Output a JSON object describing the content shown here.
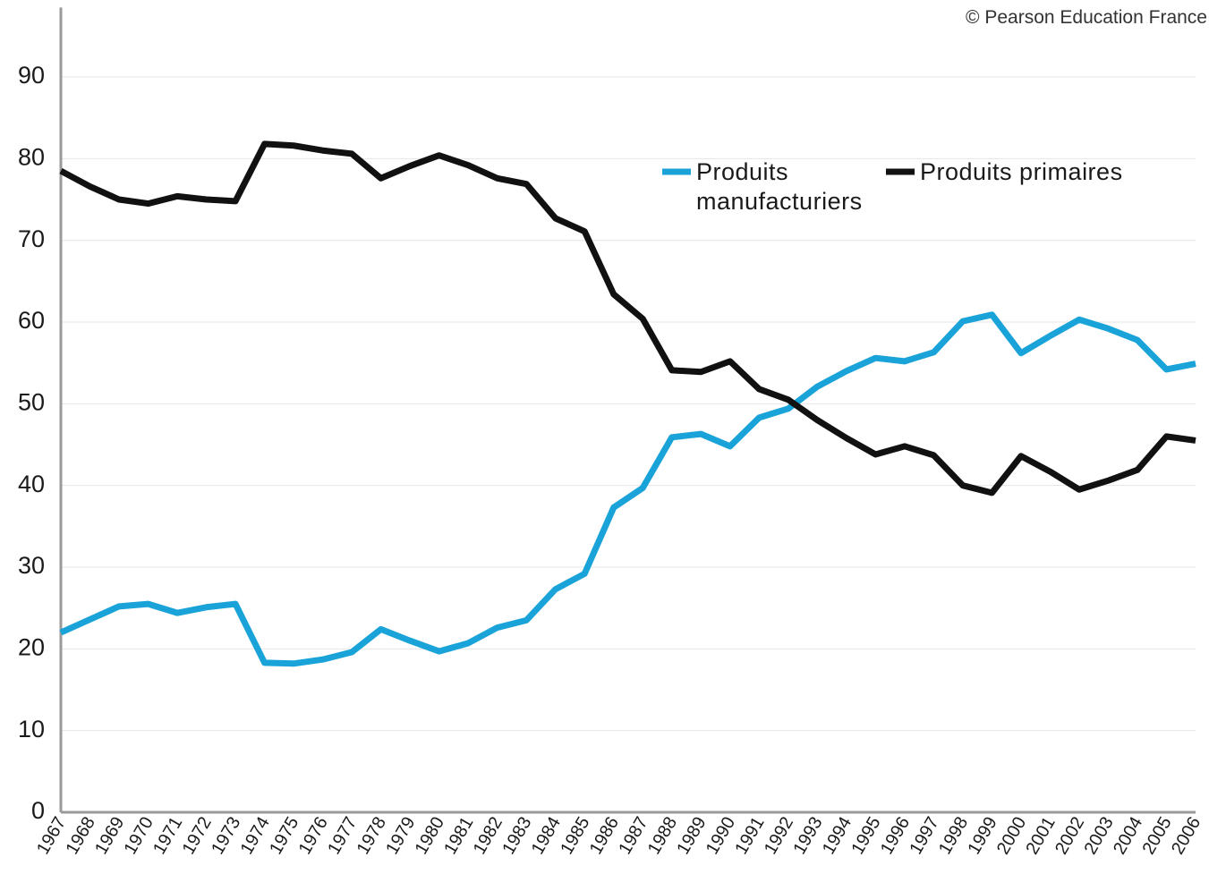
{
  "chart_data": {
    "type": "line",
    "annotation": "© Pearson Education France",
    "categories": [
      "1967",
      "1968",
      "1969",
      "1970",
      "1971",
      "1972",
      "1973",
      "1974",
      "1975",
      "1976",
      "1977",
      "1978",
      "1979",
      "1980",
      "1981",
      "1982",
      "1983",
      "1984",
      "1985",
      "1986",
      "1987",
      "1988",
      "1989",
      "1990",
      "1991",
      "1992",
      "1993",
      "1994",
      "1995",
      "1996",
      "1997",
      "1998",
      "1999",
      "2000",
      "2001",
      "2002",
      "2003",
      "2004",
      "2005",
      "2006"
    ],
    "series": [
      {
        "name": "Produits manufacturiers",
        "color": "#1aa3d9",
        "values": [
          22,
          23.6,
          25.2,
          25.5,
          24.4,
          25.1,
          25.5,
          18.3,
          18.2,
          18.7,
          19.6,
          22.4,
          21.0,
          19.7,
          20.7,
          22.6,
          23.5,
          27.3,
          29.2,
          37.3,
          39.7,
          45.9,
          46.3,
          44.8,
          48.3,
          49.4,
          52.1,
          54.0,
          55.6,
          55.2,
          56.3,
          60.1,
          60.9,
          56.2,
          58.3,
          60.3,
          59.2,
          57.8,
          54.2,
          54.9
        ]
      },
      {
        "name": "Produits primaires",
        "color": "#111111",
        "values": [
          78.5,
          76.6,
          75.0,
          74.5,
          75.4,
          75.0,
          74.8,
          81.8,
          81.6,
          81.0,
          80.6,
          77.6,
          79.1,
          80.4,
          79.2,
          77.6,
          76.9,
          72.7,
          71.1,
          63.4,
          60.4,
          54.1,
          53.9,
          55.2,
          51.8,
          50.5,
          48.0,
          45.8,
          43.8,
          44.8,
          43.7,
          40.0,
          39.1,
          43.6,
          41.7,
          39.5,
          40.6,
          41.9,
          46.0,
          45.5
        ]
      }
    ],
    "ylim": [
      0,
      98.5
    ],
    "yticks": [
      0,
      10,
      20,
      30,
      40,
      50,
      60,
      70,
      80,
      90
    ],
    "grid": true
  }
}
